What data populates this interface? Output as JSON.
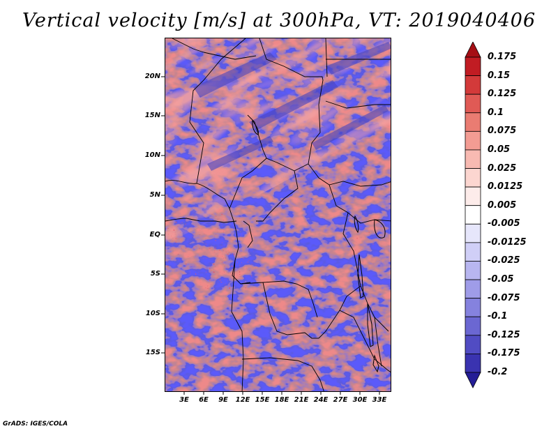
{
  "title": "Vertical velocity [m/s] at 300hPa, VT: 2019040406",
  "credit": "GrADS: IGES/COLA",
  "y_axis_labels": [
    "20N",
    "15N",
    "10N",
    "5N",
    "EQ",
    "5S",
    "10S",
    "15S"
  ],
  "x_axis_labels": [
    "3E",
    "6E",
    "9E",
    "12E",
    "15E",
    "18E",
    "21E",
    "24E",
    "27E",
    "30E",
    "33E"
  ],
  "colorbar": {
    "labels": [
      "0.175",
      "0.15",
      "0.125",
      "0.1",
      "0.075",
      "0.05",
      "0.025",
      "0.0125",
      "0.005",
      "-0.005",
      "-0.0125",
      "-0.025",
      "-0.05",
      "-0.075",
      "-0.1",
      "-0.125",
      "-0.175",
      "-0.2"
    ],
    "colors": [
      "#a50f15",
      "#c11c23",
      "#d33a3a",
      "#e05a55",
      "#ea7c72",
      "#f39c93",
      "#f8bab2",
      "#fcd6d0",
      "#fdecea",
      "#ffffff",
      "#e6e6fb",
      "#d0cff7",
      "#b8b6f0",
      "#9f9ce8",
      "#8582de",
      "#6b67d2",
      "#514cc3",
      "#3a33b0",
      "#241d96"
    ]
  }
}
